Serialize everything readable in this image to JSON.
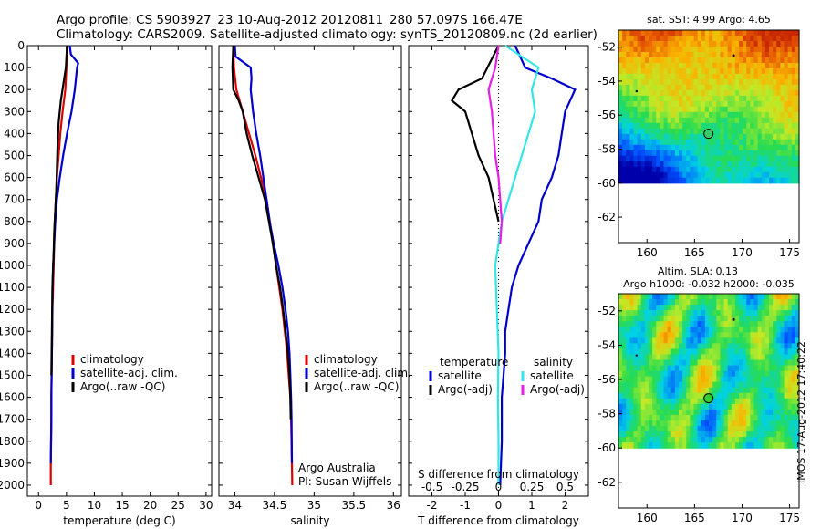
{
  "header": {
    "line1": "Argo profile: CS 5903927_23 10-Aug-2012 20120811_280 57.097S 166.47E",
    "line2": "Climatology: CARS2009. Satellite-adjusted climatology: synTS_20120809.nc (2d earlier)"
  },
  "stamp": "IMOS 17-Aug-2012 17:40:22",
  "colors": {
    "black": "#000000",
    "red": "#dd0000",
    "blue": "#0000cc",
    "cyan": "#33e6e6",
    "magenta": "#e61ee6"
  },
  "chart_data": [
    {
      "type": "line",
      "xlabel": "temperature (deg C)",
      "ylim": [
        2050,
        0
      ],
      "xlim": [
        -2,
        31
      ],
      "xticks": [
        0,
        5,
        10,
        15,
        20,
        25,
        30
      ],
      "yticks": [
        0,
        100,
        200,
        300,
        400,
        500,
        600,
        700,
        800,
        900,
        1000,
        1100,
        1200,
        1300,
        1400,
        1500,
        1600,
        1700,
        1800,
        1900,
        2000
      ],
      "legend": [
        "climatology",
        "satellite-adj. clim.",
        "Argo(..raw -QC)"
      ],
      "legend_position": "lower-center",
      "series": [
        {
          "name": "climatology",
          "color": "#dd0000",
          "x": [
            5.1,
            5.0,
            4.8,
            4.3,
            3.9,
            3.6,
            3.3,
            3.1,
            2.9,
            2.8,
            2.7,
            2.6,
            2.5,
            2.45,
            2.4,
            2.35,
            2.3,
            2.3,
            2.25,
            2.2,
            2.2
          ],
          "y": [
            0,
            100,
            200,
            300,
            400,
            500,
            600,
            700,
            800,
            900,
            1000,
            1100,
            1200,
            1300,
            1400,
            1500,
            1600,
            1700,
            1800,
            1900,
            2000
          ]
        },
        {
          "name": "satellite-adj. clim.",
          "color": "#0000cc",
          "x": [
            5.6,
            5.8,
            7.1,
            6.9,
            6.5,
            5.9,
            5.1,
            4.4,
            3.8,
            3.3,
            3.0,
            2.8,
            2.6,
            2.5,
            2.45,
            2.4,
            2.35,
            2.3,
            2.3,
            2.25,
            2.2
          ],
          "y": [
            0,
            40,
            80,
            100,
            200,
            300,
            400,
            500,
            600,
            700,
            800,
            900,
            1000,
            1100,
            1300,
            1400,
            1500,
            1600,
            1700,
            1800,
            1900
          ]
        },
        {
          "name": "Argo(..raw -QC)",
          "color": "#000000",
          "x": [
            5.1,
            4.9,
            4.0,
            3.6,
            3.4,
            3.3,
            3.2,
            3.0,
            2.8,
            2.7,
            2.5,
            2.45,
            2.4,
            2.35,
            2.3
          ],
          "y": [
            0,
            100,
            250,
            350,
            450,
            550,
            650,
            750,
            850,
            950,
            1100,
            1200,
            1300,
            1400,
            1500
          ]
        }
      ]
    },
    {
      "type": "line",
      "xlabel": "salinity",
      "ylim": [
        2050,
        0
      ],
      "xlim": [
        33.8,
        36.1
      ],
      "xticks": [
        34,
        34.5,
        35,
        35.5,
        36
      ],
      "legend": [
        "climatology",
        "satellite-adj. clim.",
        "Argo(..raw -QC)"
      ],
      "legend_position": "lower-right",
      "annotation": [
        "Argo Australia",
        "PI: Susan Wijffels"
      ],
      "series": [
        {
          "name": "climatology",
          "color": "#dd0000",
          "x": [
            33.98,
            33.99,
            34.02,
            34.1,
            34.18,
            34.26,
            34.33,
            34.4,
            34.44,
            34.48,
            34.52,
            34.56,
            34.6,
            34.63,
            34.66,
            34.68,
            34.7,
            34.71,
            34.715,
            34.72,
            34.725
          ],
          "y": [
            0,
            100,
            200,
            300,
            400,
            500,
            600,
            700,
            800,
            900,
            1000,
            1100,
            1200,
            1300,
            1400,
            1500,
            1600,
            1700,
            1800,
            1900,
            2000
          ]
        },
        {
          "name": "satellite-adj. clim.",
          "color": "#0000cc",
          "x": [
            34.0,
            34.01,
            34.2,
            34.21,
            34.2,
            34.23,
            34.27,
            34.32,
            34.36,
            34.4,
            34.44,
            34.49,
            34.55,
            34.6,
            34.64,
            34.67,
            34.69,
            34.7,
            34.71,
            34.715,
            34.72
          ],
          "y": [
            0,
            50,
            100,
            150,
            200,
            300,
            400,
            500,
            600,
            700,
            800,
            900,
            1000,
            1100,
            1200,
            1300,
            1400,
            1500,
            1600,
            1700,
            1900
          ]
        },
        {
          "name": "Argo(..raw -QC)",
          "color": "#000000",
          "x": [
            33.98,
            33.97,
            33.98,
            34.05,
            34.1,
            34.15,
            34.22,
            34.3,
            34.38,
            34.43,
            34.48,
            34.52,
            34.57,
            34.61,
            34.64,
            34.67,
            34.69,
            34.7,
            34.705
          ],
          "y": [
            0,
            100,
            200,
            250,
            300,
            400,
            500,
            600,
            700,
            800,
            900,
            1000,
            1100,
            1200,
            1300,
            1400,
            1500,
            1600,
            1700
          ]
        }
      ]
    },
    {
      "type": "line",
      "xlabel": "T difference from climatology",
      "ylim": [
        2050,
        0
      ],
      "xlim": [
        -2.7,
        2.7
      ],
      "xticks": [
        -2,
        -1,
        0,
        1,
        2
      ],
      "secondary_xlabel": "S difference from climatology",
      "secondary_xticks": [
        -0.5,
        -0.25,
        0,
        0.25,
        0.5
      ],
      "legend_groups": [
        {
          "title": "temperature",
          "entries": [
            "satellite",
            "Argo(-adj)"
          ]
        },
        {
          "title": "salinity",
          "entries": [
            "satellite",
            "Argo(-adj)"
          ]
        }
      ],
      "legend_position": "lower-center",
      "series": [
        {
          "name": "temperature satellite",
          "color": "#0000cc",
          "x": [
            0.5,
            0.8,
            1.6,
            2.3,
            2.0,
            1.9,
            1.8,
            1.6,
            1.3,
            1.2,
            0.9,
            0.6,
            0.4,
            0.3,
            0.2,
            0.2,
            0.15,
            0.1,
            0.1,
            0.1,
            0.05
          ],
          "y": [
            0,
            100,
            150,
            200,
            300,
            400,
            500,
            600,
            700,
            800,
            900,
            1000,
            1100,
            1200,
            1300,
            1400,
            1500,
            1600,
            1700,
            1800,
            2000
          ]
        },
        {
          "name": "temperature Argo(-adj)",
          "color": "#000000",
          "x": [
            0.0,
            -0.5,
            -1.2,
            -1.4,
            -1.0,
            -0.8,
            -0.6,
            -0.3,
            -0.15,
            0.0
          ],
          "y": [
            0,
            150,
            200,
            250,
            300,
            400,
            500,
            600,
            700,
            800
          ]
        },
        {
          "name": "salinity satellite",
          "color": "#33e6e6",
          "x": [
            0.2,
            1.2,
            1.0,
            1.1,
            0.9,
            0.7,
            0.5,
            0.3,
            0.1,
            0.0,
            -0.1,
            -0.05,
            0.0,
            -0.02,
            0.0,
            0.0,
            0.0
          ],
          "y": [
            0,
            100,
            200,
            300,
            400,
            500,
            600,
            700,
            800,
            900,
            1000,
            1200,
            1400,
            1600,
            1800,
            1900,
            2000
          ]
        },
        {
          "name": "salinity Argo(-adj)",
          "color": "#e61ee6",
          "x": [
            0.0,
            -0.1,
            -0.3,
            -0.2,
            -0.15,
            -0.1,
            0.0,
            0.05,
            0.1,
            0.05
          ],
          "y": [
            0,
            100,
            200,
            300,
            400,
            500,
            600,
            700,
            800,
            900
          ]
        }
      ]
    },
    {
      "type": "heatmap",
      "title": "sat. SST: 4.99 Argo: 4.65",
      "xlim": [
        157,
        176
      ],
      "ylim": [
        -63.5,
        -51
      ],
      "xticks": [
        160,
        165,
        170,
        175
      ],
      "yticks": [
        -52,
        -54,
        -56,
        -58,
        -60,
        -62
      ],
      "marker_lon": 166.47,
      "marker_lat": -57.097
    },
    {
      "type": "heatmap",
      "title": "Altim. SLA: 0.13",
      "subtitle": "Argo h1000: -0.032 h2000: -0.035",
      "xlim": [
        157,
        176
      ],
      "ylim": [
        -63.5,
        -51
      ],
      "xticks": [
        160,
        165,
        170,
        175
      ],
      "yticks": [
        -52,
        -54,
        -56,
        -58,
        -60,
        -62
      ],
      "marker_lon": 166.47,
      "marker_lat": -57.097
    }
  ]
}
